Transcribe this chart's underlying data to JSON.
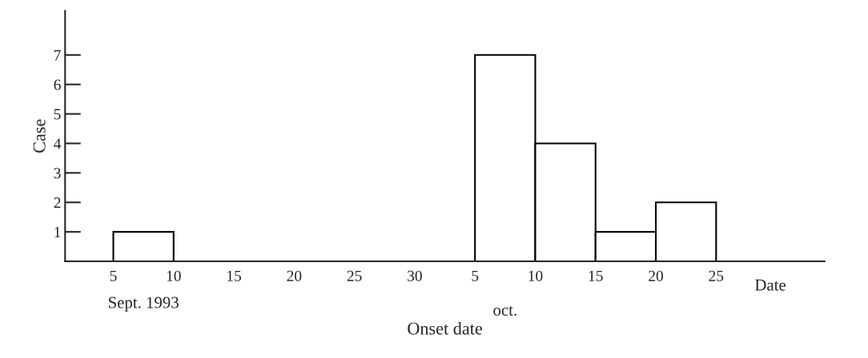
{
  "chart_data": {
    "type": "histogram",
    "xlabel": "Onset date",
    "ylabel": "Case",
    "bins": [
      "1993-09-05",
      "1993-09-10",
      "1993-09-15",
      "1993-09-20",
      "1993-09-25",
      "1993-09-30",
      "1993-10-05",
      "1993-10-10",
      "1993-10-15",
      "1993-10-20",
      "1993-10-25"
    ],
    "values": [
      1,
      0,
      0,
      0,
      0,
      0,
      7,
      4,
      1,
      2
    ],
    "color": "#ffffff",
    "xlim": [
      "1993-09-01",
      "1993-11-03"
    ],
    "ylim": [
      0,
      8.5
    ],
    "xticks": [
      {
        "value": "1993-09-05",
        "label": "5"
      },
      {
        "value": "1993-09-10",
        "label": "10"
      },
      {
        "value": "1993-09-15",
        "label": "15"
      },
      {
        "value": "1993-09-20",
        "label": "20"
      },
      {
        "value": "1993-09-25",
        "label": "25"
      },
      {
        "value": "1993-09-30",
        "label": "30"
      },
      {
        "value": "1993-10-05",
        "label": "5"
      },
      {
        "value": "1993-10-10",
        "label": "10"
      },
      {
        "value": "1993-10-15",
        "label": "15"
      },
      {
        "value": "1993-10-20",
        "label": "20"
      },
      {
        "value": "1993-10-25",
        "label": "25"
      }
    ],
    "yticks": [
      1,
      2,
      3,
      4,
      5,
      6,
      7
    ],
    "grid": false,
    "legend": false,
    "annotations": [
      "Sept. 1993",
      "oct.",
      "Date"
    ]
  }
}
